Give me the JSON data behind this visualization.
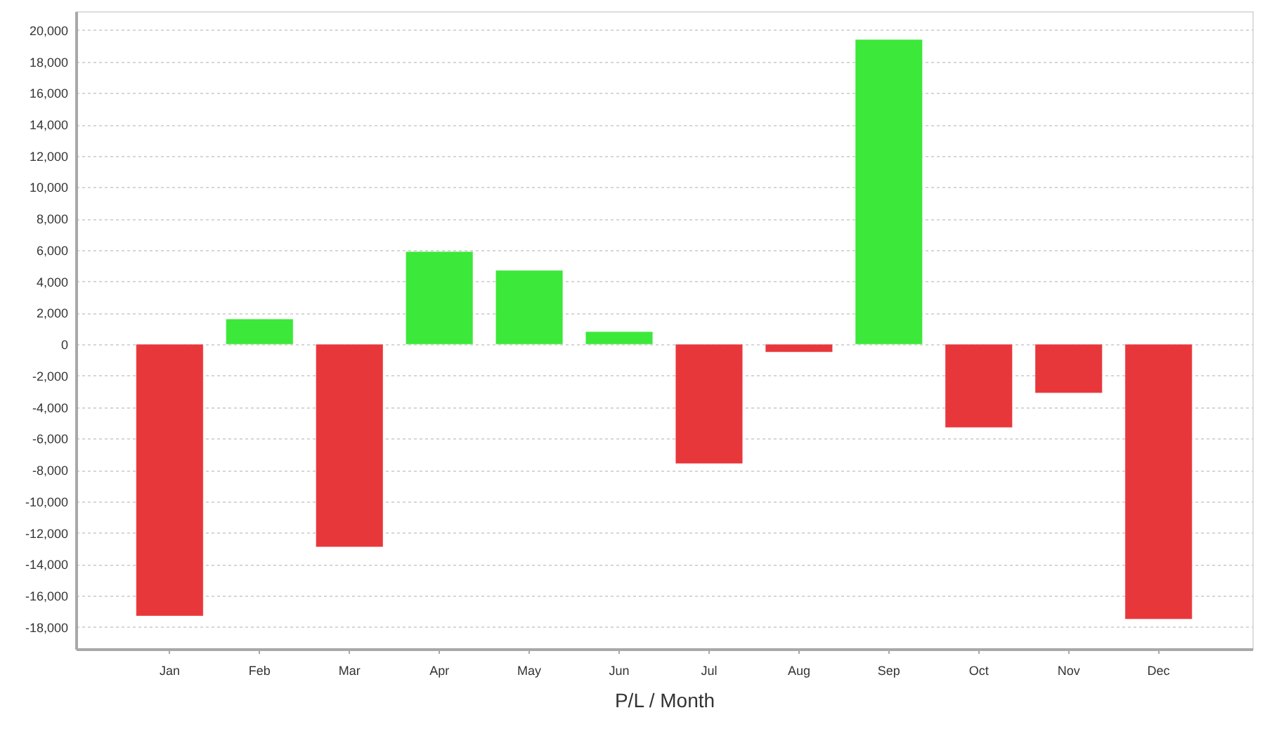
{
  "chart_data": {
    "type": "bar",
    "xlabel": "P/L / Month",
    "categories": [
      "Jan",
      "Feb",
      "Mar",
      "Apr",
      "May",
      "Jun",
      "Jul",
      "Aug",
      "Sep",
      "Oct",
      "Nov",
      "Dec"
    ],
    "values": [
      -17300,
      1600,
      -12900,
      5900,
      4700,
      800,
      -7600,
      -500,
      19400,
      -5300,
      -3100,
      -17500
    ],
    "colors": [
      "#e8373b",
      "#3ce83a",
      "#e8373b",
      "#3ce83a",
      "#3ce83a",
      "#3ce83a",
      "#e8373b",
      "#e8373b",
      "#3ce83a",
      "#e8373b",
      "#e8373b",
      "#e8373b"
    ],
    "ylim": [
      -19400,
      21200
    ],
    "yticks": [
      {
        "value": -18000,
        "label": "-18,000"
      },
      {
        "value": -16000,
        "label": "-16,000"
      },
      {
        "value": -14000,
        "label": "-14,000"
      },
      {
        "value": -12000,
        "label": "-12,000"
      },
      {
        "value": -10000,
        "label": "-10,000"
      },
      {
        "value": -8000,
        "label": "-8,000"
      },
      {
        "value": -6000,
        "label": "-6,000"
      },
      {
        "value": -4000,
        "label": "-4,000"
      },
      {
        "value": -2000,
        "label": "-2,000"
      },
      0,
      {
        "value": 2000,
        "label": "2,000"
      },
      {
        "value": 4000,
        "label": "4,000"
      },
      {
        "value": 6000,
        "label": "6,000"
      },
      {
        "value": 8000,
        "label": "8,000"
      },
      {
        "value": 10000,
        "label": "10,000"
      },
      {
        "value": 12000,
        "label": "12,000"
      },
      {
        "value": 14000,
        "label": "14,000"
      },
      {
        "value": 16000,
        "label": "16,000"
      },
      {
        "value": 18000,
        "label": "18,000"
      },
      {
        "value": 20000,
        "label": "20,000"
      }
    ],
    "grid": "y"
  }
}
